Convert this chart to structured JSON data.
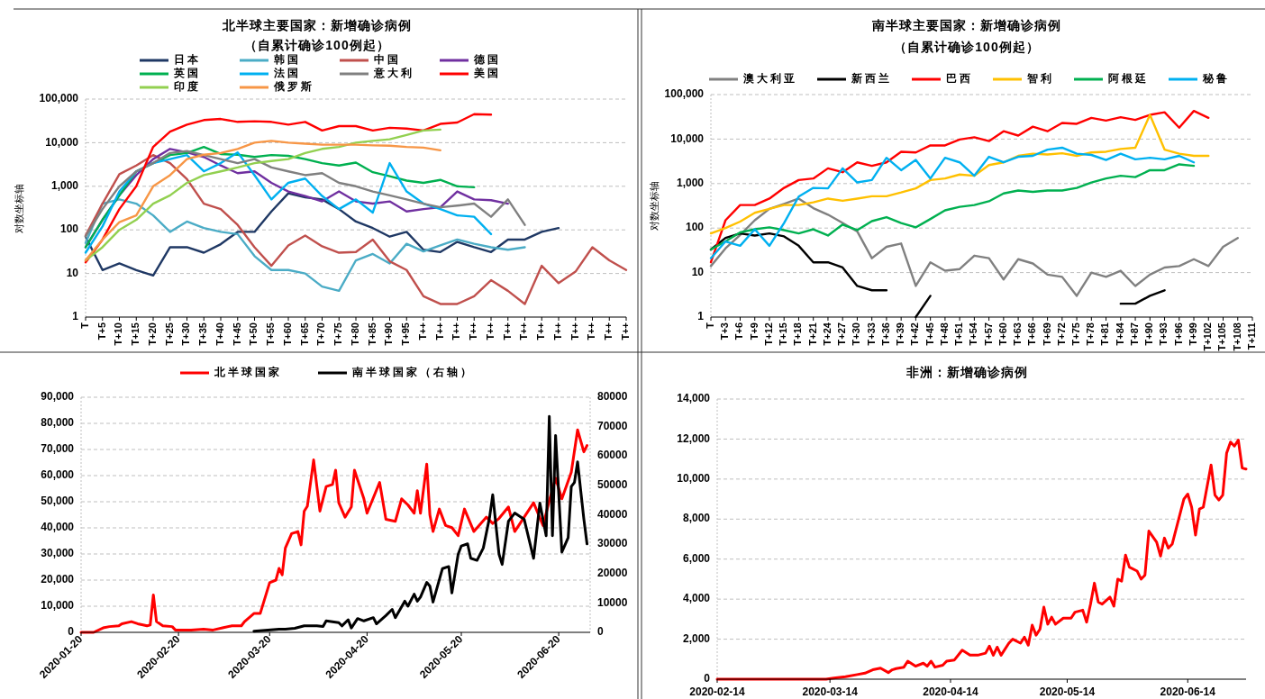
{
  "chart_data": [
    {
      "type": "line",
      "title": "北半球主要国家：新增确诊病例",
      "subtitle": "（自累计确诊100例起）",
      "ylabel": "对数坐标轴",
      "log": "y",
      "grid": "y",
      "legend": "top",
      "ylim": [
        1,
        100000
      ],
      "yticks": [
        1,
        10,
        100,
        {
          "value": 1000,
          "label": "1,000"
        },
        {
          "value": 10000,
          "label": "10,000"
        },
        {
          "value": 100000,
          "label": "100,000"
        }
      ],
      "categories": [
        "T",
        "T+5",
        "T+10",
        "T+15",
        "T+20",
        "T+25",
        "T+30",
        "T+35",
        "T+40",
        "T+45",
        "T+50",
        "T+55",
        "T+60",
        "T+65",
        "T+70",
        "T+75",
        "T+80",
        "T+85",
        "T+90",
        "T+95",
        "T++",
        "T++",
        "T++",
        "T++",
        "T++",
        "T++",
        "T++",
        "T++",
        "T++",
        "T++",
        "T++",
        "T++",
        "T++"
      ],
      "series": [
        {
          "name": "日本",
          "color": "#1f3864",
          "values": [
            70,
            12,
            17,
            12,
            9,
            40,
            40,
            30,
            47,
            90,
            90,
            265,
            690,
            560,
            500,
            300,
            155,
            110,
            70,
            90,
            35,
            31,
            53,
            40,
            31,
            60,
            60,
            90,
            110,
            null,
            null,
            null,
            null
          ]
        },
        {
          "name": "韩国",
          "color": "#4bacc6",
          "values": [
            50,
            400,
            500,
            400,
            215,
            90,
            155,
            110,
            90,
            80,
            25,
            12,
            12,
            10,
            5,
            4,
            20,
            28,
            17,
            48,
            32,
            44,
            60,
            48,
            40,
            35,
            40,
            null,
            null,
            null,
            null,
            null,
            null
          ]
        },
        {
          "name": "中国",
          "color": "#c0504d",
          "values": [
            74,
            400,
            1900,
            3000,
            5200,
            3400,
            1450,
            400,
            300,
            130,
            40,
            15,
            44,
            74,
            42,
            30,
            31,
            60,
            19,
            12,
            3,
            2,
            2,
            3,
            7,
            4,
            2,
            15,
            6,
            11,
            40,
            20,
            12
          ]
        },
        {
          "name": "德国",
          "color": "#7030a0",
          "values": [
            40,
            170,
            620,
            1800,
            4200,
            7200,
            6000,
            4700,
            3000,
            2000,
            2200,
            1200,
            760,
            600,
            450,
            760,
            450,
            400,
            450,
            265,
            300,
            330,
            760,
            500,
            480,
            400,
            null,
            null,
            null,
            null,
            null,
            null,
            null
          ]
        },
        {
          "name": "英国",
          "color": "#00b050",
          "values": [
            40,
            170,
            620,
            2200,
            3400,
            5200,
            5800,
            8000,
            5500,
            5300,
            4700,
            5200,
            5000,
            4200,
            3400,
            3000,
            3500,
            2100,
            1700,
            1350,
            1200,
            1400,
            1000,
            950,
            null,
            null,
            null,
            null,
            null,
            null,
            null,
            null,
            null
          ]
        },
        {
          "name": "法国",
          "color": "#00b0f0",
          "values": [
            30,
            120,
            760,
            2200,
            3400,
            4200,
            5200,
            2200,
            3400,
            6000,
            1800,
            500,
            1200,
            1500,
            600,
            300,
            500,
            250,
            3400,
            760,
            400,
            300,
            215,
            200,
            80,
            null,
            null,
            null,
            null,
            null,
            null,
            null,
            null
          ]
        },
        {
          "name": "意大利",
          "color": "#808080",
          "values": [
            70,
            300,
            1000,
            2200,
            3400,
            5800,
            6400,
            5200,
            4200,
            3400,
            4200,
            2700,
            2200,
            1800,
            2000,
            1200,
            1000,
            760,
            620,
            500,
            400,
            330,
            360,
            400,
            200,
            500,
            130,
            null,
            null,
            null,
            null,
            null,
            null
          ]
        },
        {
          "name": "美国",
          "color": "#ff0000",
          "values": [
            18,
            60,
            300,
            1000,
            8000,
            18000,
            26000,
            33000,
            35000,
            30000,
            31000,
            30000,
            26000,
            30000,
            19000,
            24000,
            24000,
            19000,
            22000,
            21000,
            19000,
            27000,
            29000,
            45000,
            44000,
            null,
            null,
            null,
            null,
            null,
            null,
            null,
            null
          ]
        },
        {
          "name": "印度",
          "color": "#92d050",
          "values": [
            20,
            40,
            100,
            170,
            400,
            620,
            1200,
            1800,
            2200,
            2700,
            3400,
            3800,
            4200,
            5800,
            7200,
            8000,
            10000,
            11000,
            12000,
            15000,
            19000,
            20000,
            null,
            null,
            null,
            null,
            null,
            null,
            null,
            null,
            null,
            null,
            null
          ]
        },
        {
          "name": "俄罗斯",
          "color": "#f79646",
          "values": [
            20,
            60,
            150,
            215,
            1000,
            1800,
            4200,
            5300,
            5800,
            7200,
            10000,
            11000,
            10000,
            9500,
            9000,
            9000,
            9000,
            8700,
            8500,
            8000,
            7700,
            6700,
            null,
            null,
            null,
            null,
            null,
            null,
            null,
            null,
            null,
            null,
            null
          ]
        }
      ]
    },
    {
      "type": "line",
      "title": "南半球主要国家：新增确诊病例",
      "subtitle": "（自累计确诊100例起）",
      "ylabel": "对数坐标轴",
      "log": "y",
      "grid": "y",
      "legend": "top",
      "ylim": [
        1,
        100000
      ],
      "yticks": [
        1,
        10,
        100,
        {
          "value": 1000,
          "label": "1,000"
        },
        {
          "value": 10000,
          "label": "10,000"
        },
        {
          "value": 100000,
          "label": "100,000"
        }
      ],
      "categories": [
        "T",
        "T+3",
        "T+6",
        "T+9",
        "T+12",
        "T+15",
        "T+18",
        "T+21",
        "T+24",
        "T+27",
        "T+30",
        "T+33",
        "T+36",
        "T+39",
        "T+42",
        "T+45",
        "T+48",
        "T+51",
        "T+54",
        "T+57",
        "T+60",
        "T+63",
        "T+66",
        "T+69",
        "T+72",
        "T+75",
        "T+78",
        "T+81",
        "T+84",
        "T+87",
        "T+90",
        "T+93",
        "T+96",
        "T+99",
        "T+102",
        "T+105",
        "T+108",
        "T+111"
      ],
      "series": [
        {
          "name": "澳大利亚",
          "color": "#808080",
          "values": [
            14,
            35,
            70,
            150,
            270,
            350,
            460,
            280,
            200,
            130,
            84,
            21,
            38,
            45,
            5,
            17,
            11,
            12,
            24,
            21,
            7,
            20,
            16,
            9,
            8,
            3,
            10,
            8,
            11,
            5,
            9,
            13,
            14,
            20,
            14,
            38,
            60,
            null
          ]
        },
        {
          "name": "新西兰",
          "color": "#000000",
          "values": [
            33,
            60,
            76,
            68,
            76,
            65,
            40,
            17,
            17,
            13,
            5,
            4,
            4,
            null,
            1,
            3,
            null,
            null,
            null,
            null,
            null,
            null,
            null,
            null,
            null,
            null,
            null,
            null,
            2,
            2,
            3,
            4,
            null,
            null,
            null,
            null,
            null,
            null
          ]
        },
        {
          "name": "巴西",
          "color": "#ff0000",
          "values": [
            17,
            150,
            330,
            330,
            460,
            800,
            1200,
            1300,
            2200,
            1800,
            3000,
            2500,
            3000,
            5200,
            5000,
            7200,
            7200,
            9800,
            11000,
            9000,
            15000,
            12000,
            19000,
            15000,
            23000,
            22000,
            30000,
            26000,
            31000,
            27000,
            35000,
            40000,
            18000,
            43000,
            30000,
            null,
            null,
            null
          ]
        },
        {
          "name": "智利",
          "color": "#ffc000",
          "values": [
            76,
            100,
            140,
            220,
            270,
            330,
            330,
            380,
            460,
            410,
            460,
            520,
            520,
            630,
            780,
            1200,
            1300,
            1600,
            1500,
            2600,
            3000,
            4200,
            4700,
            4500,
            4800,
            4200,
            5000,
            5200,
            6000,
            6400,
            35000,
            5800,
            4700,
            4200,
            4200,
            null,
            null,
            null
          ]
        },
        {
          "name": "阿根廷",
          "color": "#00b050",
          "values": [
            33,
            50,
            80,
            94,
            104,
            90,
            76,
            94,
            68,
            120,
            90,
            143,
            176,
            130,
            104,
            160,
            250,
            300,
            330,
            400,
            600,
            700,
            650,
            700,
            700,
            800,
            1060,
            1300,
            1500,
            1400,
            2000,
            2000,
            2700,
            2500,
            null,
            null,
            null,
            null
          ]
        },
        {
          "name": "秘鲁",
          "color": "#00b0f0",
          "values": [
            21,
            50,
            40,
            94,
            40,
            130,
            510,
            800,
            780,
            2200,
            1060,
            1200,
            3800,
            2000,
            3400,
            1300,
            3800,
            3000,
            1500,
            4000,
            3000,
            4000,
            4200,
            5800,
            6400,
            4700,
            4400,
            3400,
            4700,
            3500,
            3800,
            3500,
            4200,
            3000,
            null,
            null,
            null,
            null
          ]
        }
      ]
    },
    {
      "type": "line",
      "grid": "y",
      "legend": "top",
      "xlim": [
        "2020-01-20",
        "2020-06-30"
      ],
      "xticks": [
        "2020-01-20",
        "2020-02-20",
        "2020-03-20",
        "2020-04-20",
        "2020-05-20",
        "2020-06-20"
      ],
      "ylim": [
        0,
        90000
      ],
      "yticks": [
        0,
        {
          "value": 10000,
          "label": "10,000"
        },
        {
          "value": 20000,
          "label": "20,000"
        },
        {
          "value": 30000,
          "label": "30,000"
        },
        {
          "value": 40000,
          "label": "40,000"
        },
        {
          "value": 50000,
          "label": "50,000"
        },
        {
          "value": 60000,
          "label": "60,000"
        },
        {
          "value": 70000,
          "label": "70,000"
        },
        {
          "value": 80000,
          "label": "80,000"
        },
        {
          "value": 90000,
          "label": "90,000"
        }
      ],
      "y2lim": [
        0,
        80000
      ],
      "y2ticks": [
        0,
        10000,
        20000,
        30000,
        40000,
        50000,
        60000,
        70000,
        80000
      ],
      "series": [
        {
          "name": "北半球国家",
          "color": "#ff0000",
          "x": [
            "2020-01-20",
            "2020-01-24",
            "2020-01-27",
            "2020-01-29",
            "2020-02-01",
            "2020-02-02",
            "2020-02-05",
            "2020-02-07",
            "2020-02-10",
            "2020-02-11",
            "2020-02-12",
            "2020-02-13",
            "2020-02-15",
            "2020-02-18",
            "2020-02-19",
            "2020-02-24",
            "2020-02-28",
            "2020-03-02",
            "2020-03-05",
            "2020-03-08",
            "2020-03-11",
            "2020-03-12",
            "2020-03-15",
            "2020-03-17",
            "2020-03-20",
            "2020-03-22",
            "2020-03-23",
            "2020-03-24",
            "2020-03-25",
            "2020-03-27",
            "2020-03-29",
            "2020-03-30",
            "2020-03-31",
            "2020-04-01",
            "2020-04-03",
            "2020-04-05",
            "2020-04-07",
            "2020-04-09",
            "2020-04-10",
            "2020-04-11",
            "2020-04-13",
            "2020-04-15",
            "2020-04-16",
            "2020-04-19",
            "2020-04-20",
            "2020-04-24",
            "2020-04-26",
            "2020-04-29",
            "2020-05-01",
            "2020-05-03",
            "2020-05-05",
            "2020-05-06",
            "2020-05-07",
            "2020-05-09",
            "2020-05-10",
            "2020-05-11",
            "2020-05-13",
            "2020-05-15",
            "2020-05-17",
            "2020-05-19",
            "2020-05-21",
            "2020-05-24",
            "2020-05-28",
            "2020-05-30",
            "2020-06-01",
            "2020-06-04",
            "2020-06-06",
            "2020-06-09",
            "2020-06-12",
            "2020-06-15",
            "2020-06-17",
            "2020-06-19",
            "2020-06-21",
            "2020-06-24",
            "2020-06-26",
            "2020-06-28",
            "2020-06-29"
          ],
          "values": [
            0,
            0,
            1700,
            2200,
            2500,
            3300,
            4100,
            3300,
            2500,
            2800,
            14300,
            4100,
            2500,
            2200,
            900,
            900,
            1200,
            900,
            1700,
            2500,
            2500,
            4100,
            7200,
            7200,
            19000,
            20000,
            24500,
            22000,
            32300,
            37800,
            38600,
            33500,
            46400,
            48300,
            66000,
            46400,
            55800,
            56600,
            62100,
            49600,
            44100,
            48000,
            62100,
            51100,
            45600,
            57400,
            43300,
            42500,
            51100,
            48800,
            45600,
            54200,
            45600,
            64400,
            44900,
            38600,
            47200,
            40900,
            40100,
            37000,
            47200,
            38600,
            44100,
            41700,
            43600,
            48000,
            38600,
            44100,
            49600,
            40900,
            50400,
            59000,
            51100,
            61300,
            77500,
            69100,
            71500
          ]
        },
        {
          "name": "南半球国家（右轴）",
          "color": "#000000",
          "axis": "y2",
          "x": [
            "2020-03-15",
            "2020-03-23",
            "2020-03-25",
            "2020-03-28",
            "2020-03-31",
            "2020-04-04",
            "2020-04-06",
            "2020-04-07",
            "2020-04-09",
            "2020-04-11",
            "2020-04-12",
            "2020-04-14",
            "2020-04-15",
            "2020-04-17",
            "2020-04-19",
            "2020-04-22",
            "2020-04-23",
            "2020-04-26",
            "2020-04-28",
            "2020-04-29",
            "2020-05-02",
            "2020-05-03",
            "2020-05-05",
            "2020-05-06",
            "2020-05-07",
            "2020-05-09",
            "2020-05-10",
            "2020-05-11",
            "2020-05-14",
            "2020-05-16",
            "2020-05-17",
            "2020-05-19",
            "2020-05-20",
            "2020-05-22",
            "2020-05-23",
            "2020-05-25",
            "2020-05-27",
            "2020-05-29",
            "2020-05-30",
            "2020-06-01",
            "2020-06-02",
            "2020-06-04",
            "2020-06-06",
            "2020-06-09",
            "2020-06-12",
            "2020-06-14",
            "2020-06-16",
            "2020-06-17",
            "2020-06-18",
            "2020-06-19",
            "2020-06-21",
            "2020-06-23",
            "2020-06-24",
            "2020-06-25",
            "2020-06-26",
            "2020-06-27",
            "2020-06-28",
            "2020-06-29"
          ],
          "values": [
            400,
            1100,
            1100,
            1400,
            2200,
            2200,
            2000,
            3900,
            3600,
            3300,
            2200,
            4300,
            1500,
            4700,
            3900,
            5000,
            2900,
            5700,
            7800,
            5000,
            10600,
            8900,
            13000,
            10600,
            12000,
            17000,
            15700,
            10300,
            21700,
            22400,
            13400,
            26600,
            29400,
            30100,
            25200,
            24500,
            28700,
            39200,
            46800,
            26600,
            23100,
            37800,
            40600,
            38500,
            25200,
            44000,
            32900,
            73500,
            32900,
            67000,
            27300,
            32200,
            49600,
            51000,
            58000,
            48200,
            38500,
            30100
          ]
        }
      ]
    },
    {
      "type": "line",
      "title": "非洲：新增确诊病例",
      "grid": "y",
      "xlim": [
        "2020-02-14",
        "2020-06-29"
      ],
      "xticks": [
        "2020-02-14",
        "2020-03-14",
        "2020-04-14",
        "2020-05-14",
        "2020-06-14"
      ],
      "ylim": [
        0,
        14000
      ],
      "yticks": [
        0,
        {
          "value": 2000,
          "label": "2,000"
        },
        {
          "value": 4000,
          "label": "4,000"
        },
        {
          "value": 6000,
          "label": "6,000"
        },
        {
          "value": 8000,
          "label": "8,000"
        },
        {
          "value": 10000,
          "label": "10,000"
        },
        {
          "value": 12000,
          "label": "12,000"
        },
        {
          "value": 14000,
          "label": "14,000"
        }
      ],
      "series": [
        {
          "color": "#ff0000",
          "x": [
            "2020-02-14",
            "2020-03-13",
            "2020-03-15",
            "2020-03-18",
            "2020-03-21",
            "2020-03-23",
            "2020-03-25",
            "2020-03-27",
            "2020-03-29",
            "2020-03-30",
            "2020-03-31",
            "2020-04-02",
            "2020-04-03",
            "2020-04-05",
            "2020-04-07",
            "2020-04-08",
            "2020-04-09",
            "2020-04-10",
            "2020-04-12",
            "2020-04-13",
            "2020-04-15",
            "2020-04-17",
            "2020-04-19",
            "2020-04-21",
            "2020-04-23",
            "2020-04-24",
            "2020-04-25",
            "2020-04-26",
            "2020-04-27",
            "2020-04-29",
            "2020-04-30",
            "2020-05-02",
            "2020-05-03",
            "2020-05-04",
            "2020-05-05",
            "2020-05-06",
            "2020-05-07",
            "2020-05-08",
            "2020-05-09",
            "2020-05-10",
            "2020-05-11",
            "2020-05-13",
            "2020-05-15",
            "2020-05-16",
            "2020-05-18",
            "2020-05-19",
            "2020-05-20",
            "2020-05-21",
            "2020-05-22",
            "2020-05-23",
            "2020-05-25",
            "2020-05-26",
            "2020-05-27",
            "2020-05-28",
            "2020-05-29",
            "2020-05-30",
            "2020-06-01",
            "2020-06-02",
            "2020-06-03",
            "2020-06-04",
            "2020-06-06",
            "2020-06-07",
            "2020-06-08",
            "2020-06-09",
            "2020-06-10",
            "2020-06-13",
            "2020-06-14",
            "2020-06-15",
            "2020-06-16",
            "2020-06-17",
            "2020-06-18",
            "2020-06-20",
            "2020-06-21",
            "2020-06-22",
            "2020-06-23",
            "2020-06-24",
            "2020-06-25",
            "2020-06-26",
            "2020-06-27",
            "2020-06-28",
            "2020-06-29"
          ],
          "values": [
            0,
            0,
            60,
            120,
            230,
            300,
            470,
            550,
            330,
            470,
            530,
            600,
            900,
            650,
            800,
            650,
            900,
            600,
            700,
            900,
            960,
            1450,
            1200,
            1200,
            1300,
            1650,
            1200,
            1600,
            1200,
            1800,
            2000,
            1800,
            2100,
            1700,
            2700,
            2200,
            2500,
            3600,
            2750,
            3100,
            2750,
            3050,
            3050,
            3350,
            3450,
            2850,
            3750,
            4800,
            3850,
            3750,
            4100,
            3650,
            5000,
            4900,
            6200,
            5600,
            5400,
            5000,
            5200,
            7400,
            6850,
            6150,
            7050,
            6550,
            6750,
            9000,
            9250,
            8600,
            7200,
            8500,
            8600,
            10700,
            9200,
            8950,
            9200,
            11300,
            11850,
            11650,
            11950,
            10550,
            10500
          ]
        }
      ]
    }
  ]
}
